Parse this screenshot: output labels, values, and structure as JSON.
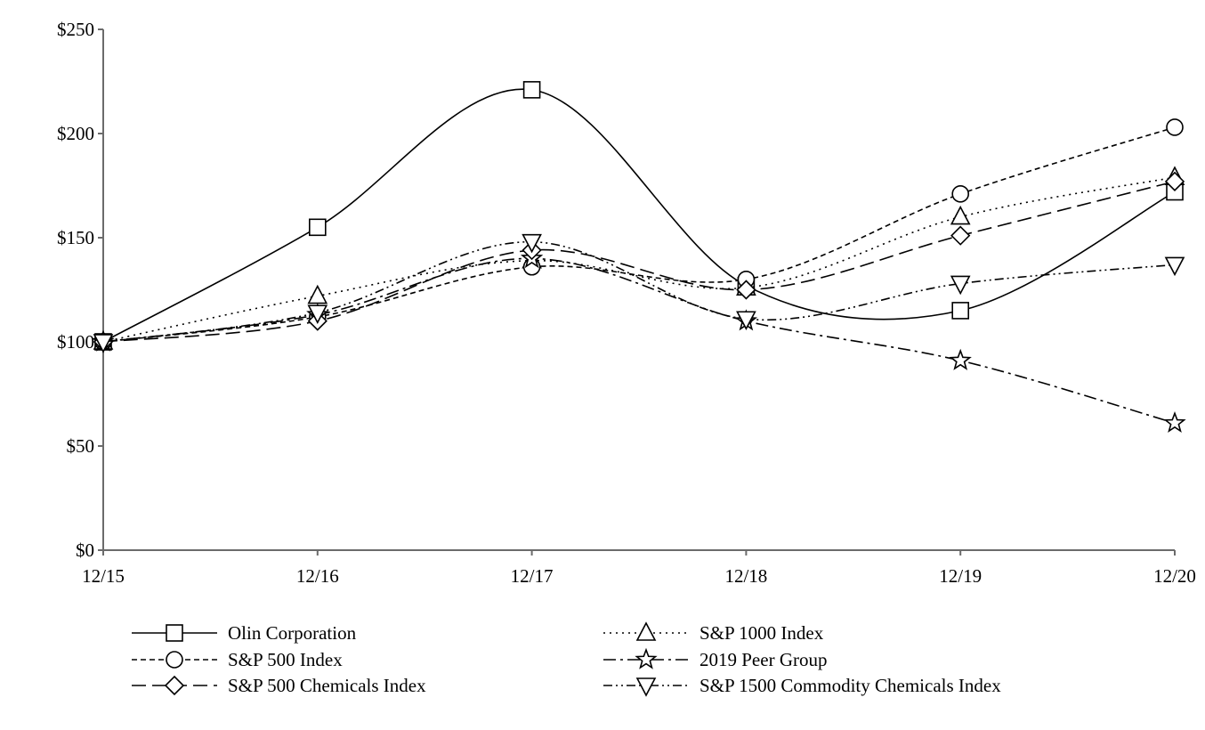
{
  "chart_data": {
    "type": "line",
    "title": "",
    "xlabel": "",
    "ylabel": "",
    "categories": [
      "12/15",
      "12/16",
      "12/17",
      "12/18",
      "12/19",
      "12/20"
    ],
    "ylim": [
      0,
      250
    ],
    "yticks": [
      0,
      50,
      100,
      150,
      200,
      250
    ],
    "ytick_labels": [
      "$0",
      "$50",
      "$100",
      "$150",
      "$200",
      "$250"
    ],
    "grid": false,
    "legend_position": "bottom",
    "series": [
      {
        "name": "Olin Corporation",
        "marker": "square",
        "dash": "solid",
        "values": [
          100,
          155,
          221,
          127,
          115,
          172
        ]
      },
      {
        "name": "S&P 1000 Index",
        "marker": "triangle-up",
        "dash": "dotted",
        "values": [
          100,
          122,
          139,
          126,
          160,
          179
        ]
      },
      {
        "name": "S&P 500 Index",
        "marker": "circle",
        "dash": "dashed",
        "values": [
          100,
          112,
          136,
          130,
          171,
          203
        ]
      },
      {
        "name": "2019 Peer Group",
        "marker": "star",
        "dash": "dash-dot",
        "values": [
          100,
          113,
          140,
          110,
          91,
          61
        ]
      },
      {
        "name": "S&P 500 Chemicals Index",
        "marker": "diamond",
        "dash": "long-dash",
        "values": [
          100,
          110,
          144,
          125,
          151,
          177
        ]
      },
      {
        "name": "S&P 1500 Commodity Chemicals Index",
        "marker": "triangle-down",
        "dash": "dash-dot-dot",
        "values": [
          100,
          114,
          148,
          111,
          128,
          137
        ]
      }
    ]
  }
}
